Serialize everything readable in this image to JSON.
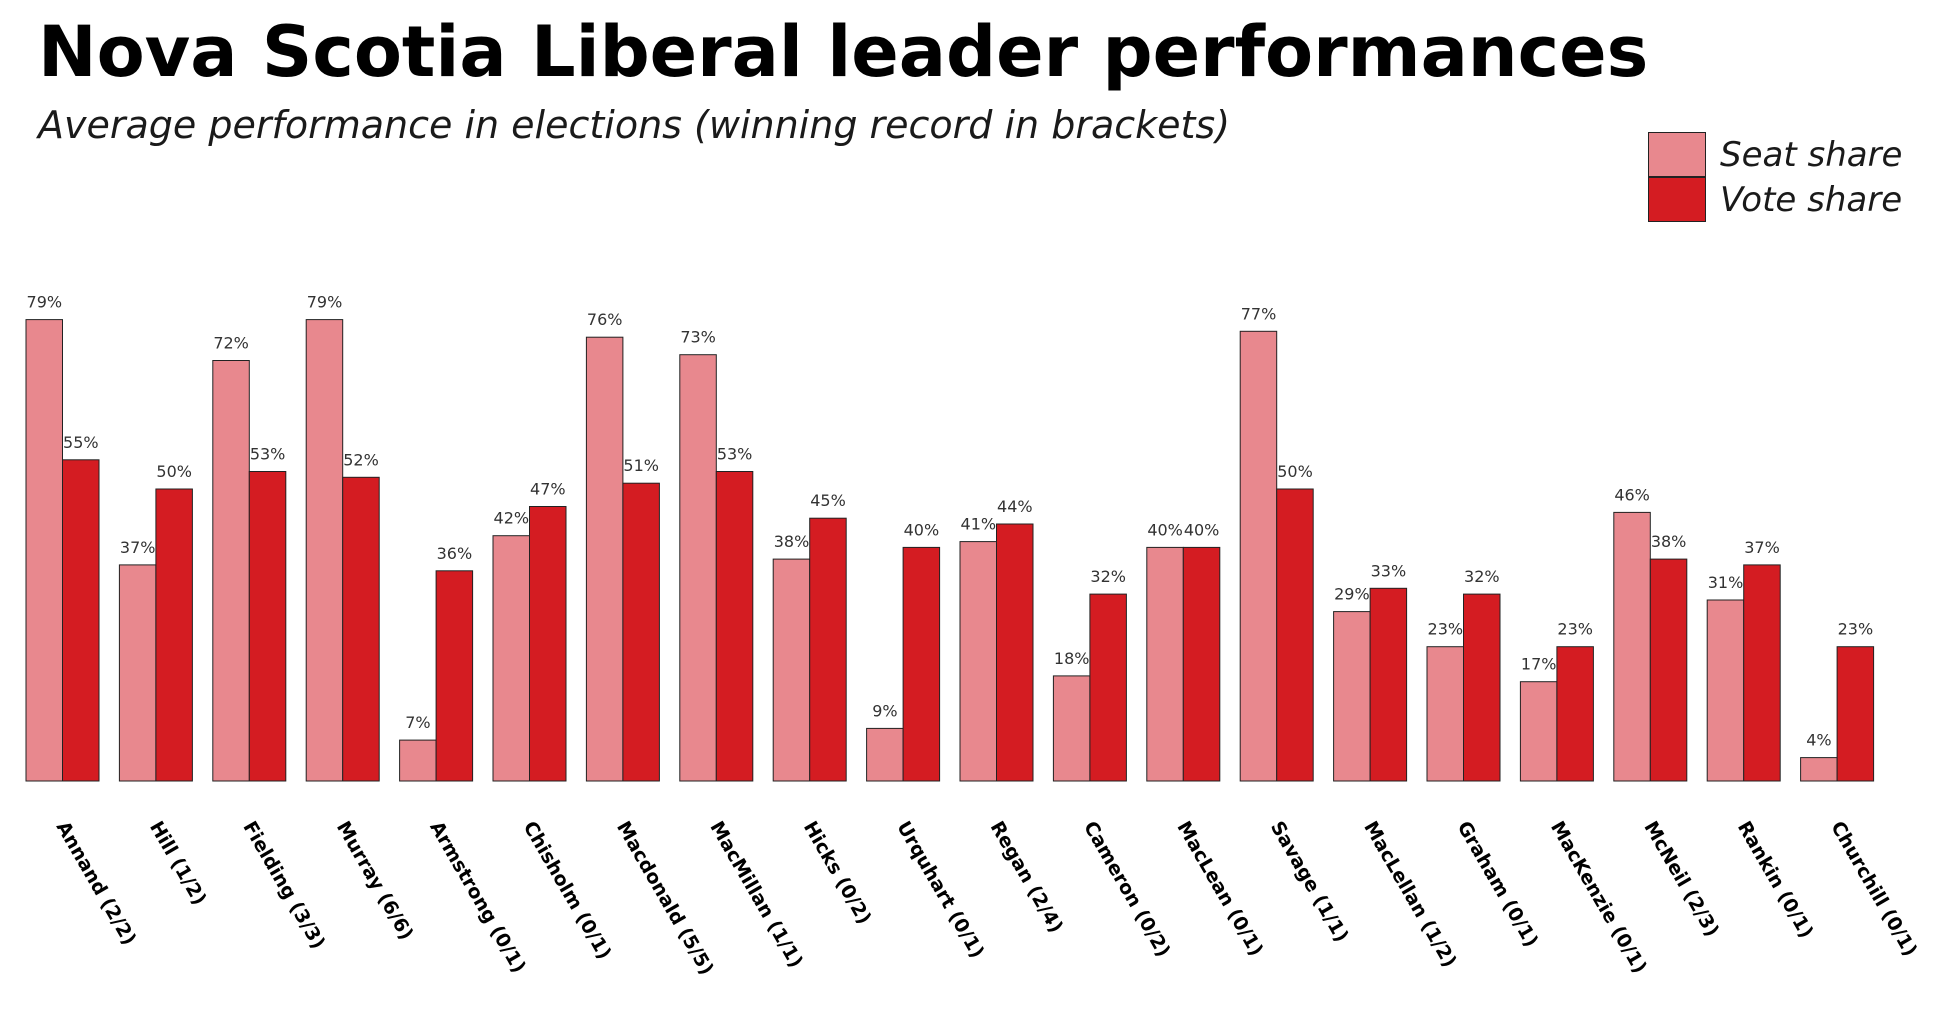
{
  "chart_data": {
    "type": "bar",
    "title": "Nova Scotia Liberal leader performances",
    "subtitle": "Average performance in elections (winning record in brackets)",
    "xlabel": "",
    "ylabel": "",
    "ylim": [
      0,
      100
    ],
    "grid": false,
    "legend_position": "top-right",
    "categories": [
      "Annand (2/2)",
      "Hill (1/2)",
      "Fielding (3/3)",
      "Murray (6/6)",
      "Armstrong (0/1)",
      "Chisholm (0/1)",
      "Macdonald (5/5)",
      "MacMillan (1/1)",
      "Hicks (0/2)",
      "Urquhart (0/1)",
      "Regan (2/4)",
      "Cameron (0/2)",
      "MacLean (0/1)",
      "Savage (1/1)",
      "MacLellan (1/2)",
      "Graham (0/1)",
      "MacKenzie (0/1)",
      "McNeil (2/3)",
      "Rankin (0/1)",
      "Churchill (0/1)"
    ],
    "series": [
      {
        "name": "Seat share",
        "color": "#e8888e",
        "values": [
          79,
          37,
          72,
          79,
          7,
          42,
          76,
          73,
          38,
          9,
          41,
          18,
          40,
          77,
          29,
          23,
          17,
          46,
          31,
          4
        ],
        "labels": [
          "79%",
          "37%",
          "72%",
          "79%",
          "7%",
          "42%",
          "76%",
          "73%",
          "38%",
          "9%",
          "41%",
          "18%",
          "40%",
          "77%",
          "29%",
          "23%",
          "17%",
          "46%",
          "31%",
          "4%"
        ]
      },
      {
        "name": "Vote share",
        "color": "#d41c22",
        "values": [
          55,
          50,
          53,
          52,
          36,
          47,
          51,
          53,
          45,
          40,
          44,
          32,
          40,
          50,
          33,
          32,
          23,
          38,
          37,
          23
        ],
        "labels": [
          "55%",
          "50%",
          "53%",
          "52%",
          "36%",
          "47%",
          "51%",
          "53%",
          "45%",
          "40%",
          "44%",
          "32%",
          "40%",
          "50%",
          "33%",
          "32%",
          "23%",
          "38%",
          "37%",
          "23%"
        ]
      }
    ]
  }
}
